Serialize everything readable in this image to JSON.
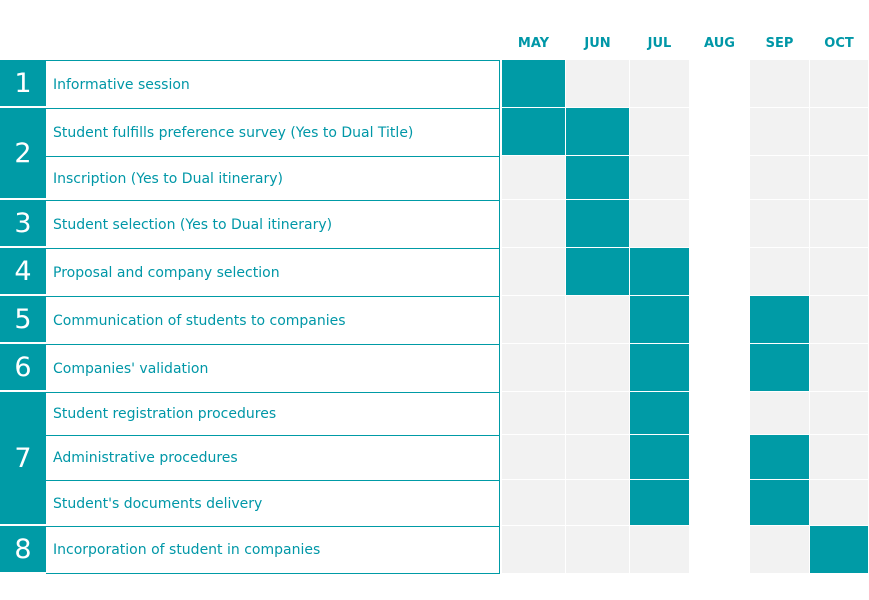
{
  "months": [
    "MAY",
    "JUN",
    "JUL",
    "AUG",
    "SEP",
    "OCT"
  ],
  "colors": {
    "accent": "#009ba6",
    "cell": "#f2f2f2",
    "text": "#0097a7"
  },
  "steps": [
    {
      "number": "1",
      "tasks": [
        {
          "label": "Informative session",
          "active": [
            "MAY"
          ]
        }
      ]
    },
    {
      "number": "2",
      "tasks": [
        {
          "label": "Student fulfills preference survey (Yes to Dual Title)",
          "active": [
            "MAY",
            "JUN"
          ]
        },
        {
          "label": "Inscription (Yes to Dual itinerary)",
          "active": [
            "JUN"
          ]
        }
      ]
    },
    {
      "number": "3",
      "tasks": [
        {
          "label": "Student selection (Yes to Dual itinerary)",
          "active": [
            "JUN"
          ]
        }
      ]
    },
    {
      "number": "4",
      "tasks": [
        {
          "label": "Proposal and company selection",
          "active": [
            "JUN",
            "JUL"
          ]
        }
      ]
    },
    {
      "number": "5",
      "tasks": [
        {
          "label": "Communication of students to companies",
          "active": [
            "JUL",
            "SEP"
          ]
        }
      ]
    },
    {
      "number": "6",
      "tasks": [
        {
          "label": "Companies' validation",
          "active": [
            "JUL",
            "SEP"
          ]
        }
      ]
    },
    {
      "number": "7",
      "tasks": [
        {
          "label": "Student registration procedures",
          "active": [
            "JUL"
          ]
        },
        {
          "label": "Administrative procedures",
          "active": [
            "JUL",
            "SEP"
          ]
        },
        {
          "label": "Student's documents delivery",
          "active": [
            "JUL",
            "SEP"
          ]
        }
      ]
    },
    {
      "number": "8",
      "tasks": [
        {
          "label": "Incorporation of student in companies",
          "active": [
            "OCT"
          ]
        }
      ]
    }
  ]
}
